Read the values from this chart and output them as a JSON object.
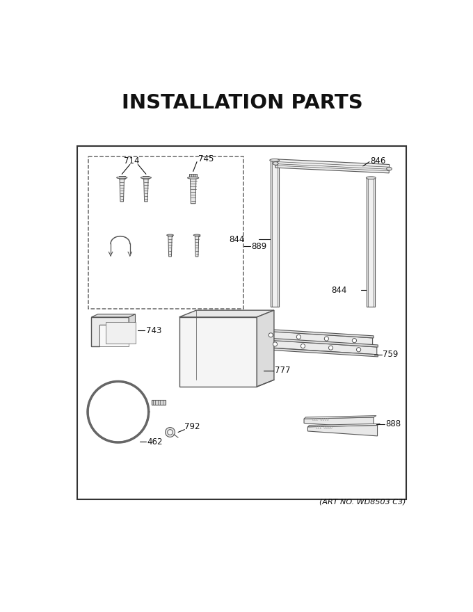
{
  "title": "INSTALLATION PARTS",
  "art_no": "(ART NO. WD8503 C3)",
  "bg_color": "#ffffff",
  "lc": "#555555",
  "tc": "#111111",
  "fig_w": 6.8,
  "fig_h": 8.8,
  "dpi": 100
}
